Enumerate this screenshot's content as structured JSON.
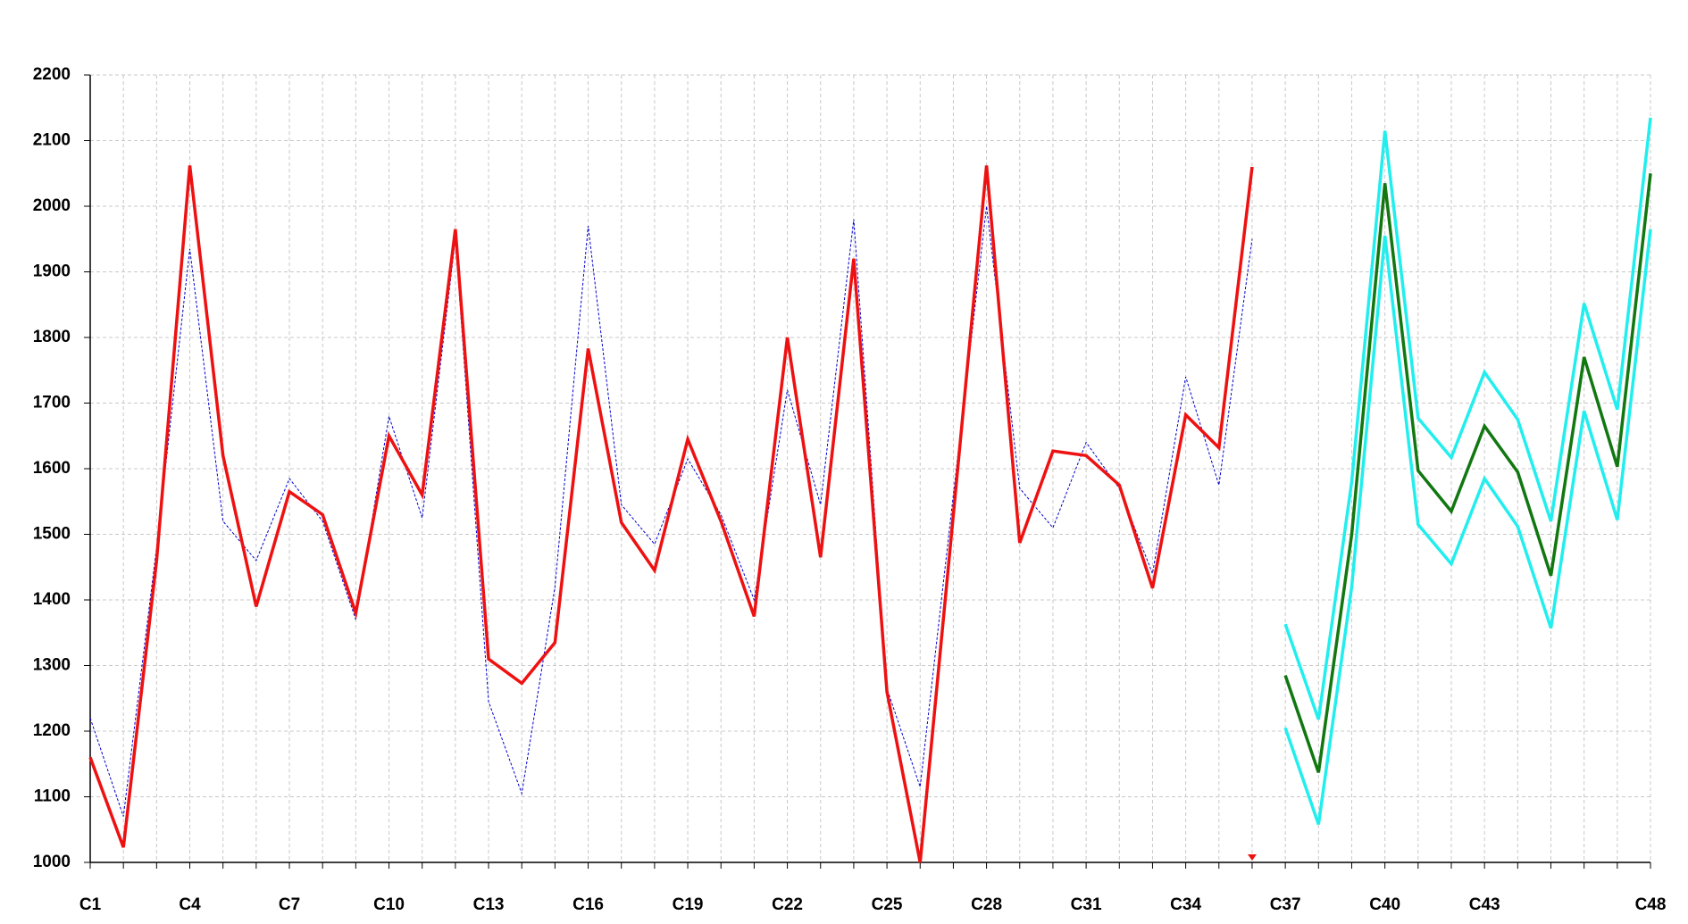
{
  "chart_data": {
    "type": "line",
    "categories": [
      "C1",
      null,
      null,
      "C4",
      null,
      null,
      "C7",
      null,
      null,
      "C10",
      null,
      null,
      "C13",
      null,
      null,
      "C16",
      null,
      null,
      "C19",
      null,
      null,
      "C22",
      null,
      null,
      "C25",
      null,
      null,
      "C28",
      null,
      null,
      "C31",
      null,
      null,
      "C34",
      null,
      null,
      "C37",
      null,
      null,
      "C40",
      null,
      null,
      "C43",
      null,
      null,
      null,
      null,
      "C48"
    ],
    "ylim": [
      1000,
      2200
    ],
    "yticks": [
      1000,
      1100,
      1200,
      1300,
      1400,
      1500,
      1600,
      1700,
      1800,
      1900,
      2000,
      2100,
      2200
    ],
    "grid": true,
    "series": [
      {
        "color": "#0000cc",
        "line_style": "dashed",
        "line_width": 1,
        "values": [
          1220,
          1070,
          1480,
          1935,
          1520,
          1460,
          1585,
          1520,
          1370,
          1680,
          1525,
          1950,
          1245,
          1105,
          1420,
          1970,
          1545,
          1485,
          1615,
          1530,
          1400,
          1720,
          1545,
          1980,
          1265,
          1115,
          1560,
          2000,
          1570,
          1510,
          1640,
          1570,
          1440,
          1740,
          1575,
          1950,
          null,
          null,
          null,
          null,
          null,
          null,
          null,
          null,
          null,
          null,
          null,
          null
        ]
      },
      {
        "color": "#ee1111",
        "line_style": "solid",
        "line_width": 3.5,
        "values": [
          1160,
          1023,
          1460,
          2062,
          1620,
          1390,
          1565,
          1530,
          1380,
          1650,
          1560,
          1965,
          1310,
          1273,
          1335,
          1783,
          1518,
          1445,
          1645,
          1520,
          1375,
          1800,
          1465,
          1920,
          1260,
          1000,
          1530,
          2062,
          1487,
          1627,
          1620,
          1575,
          1418,
          1682,
          1632,
          2060,
          null,
          null,
          null,
          null,
          null,
          null,
          null,
          null,
          null,
          null,
          null,
          null
        ]
      },
      {
        "color": "#22eeee",
        "line_style": "solid",
        "line_width": 3.5,
        "values": [
          null,
          null,
          null,
          null,
          null,
          null,
          null,
          null,
          null,
          null,
          null,
          null,
          null,
          null,
          null,
          null,
          null,
          null,
          null,
          null,
          null,
          null,
          null,
          null,
          null,
          null,
          null,
          null,
          null,
          null,
          null,
          null,
          null,
          null,
          null,
          null,
          1363,
          1218,
          1580,
          2115,
          1677,
          1617,
          1747,
          1675,
          1520,
          1852,
          1690,
          2135
        ]
      },
      {
        "color": "#22eeee",
        "line_style": "solid",
        "line_width": 3.5,
        "values": [
          null,
          null,
          null,
          null,
          null,
          null,
          null,
          null,
          null,
          null,
          null,
          null,
          null,
          null,
          null,
          null,
          null,
          null,
          null,
          null,
          null,
          null,
          null,
          null,
          null,
          null,
          null,
          null,
          null,
          null,
          null,
          null,
          null,
          null,
          null,
          null,
          1205,
          1058,
          1420,
          1955,
          1515,
          1455,
          1585,
          1512,
          1357,
          1688,
          1522,
          1965
        ]
      },
      {
        "color": "#117711",
        "line_style": "solid",
        "line_width": 3.5,
        "values": [
          null,
          null,
          null,
          null,
          null,
          null,
          null,
          null,
          null,
          null,
          null,
          null,
          null,
          null,
          null,
          null,
          null,
          null,
          null,
          null,
          null,
          null,
          null,
          null,
          null,
          null,
          null,
          null,
          null,
          null,
          null,
          null,
          null,
          null,
          null,
          null,
          1285,
          1137,
          1500,
          2035,
          1597,
          1535,
          1665,
          1595,
          1437,
          1770,
          1603,
          2050
        ]
      }
    ]
  }
}
